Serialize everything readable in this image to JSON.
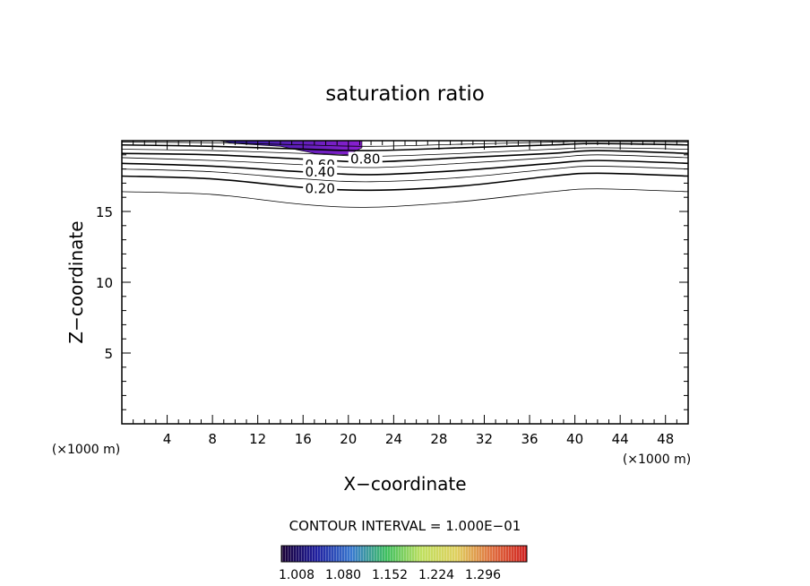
{
  "chart_data": {
    "type": "contour",
    "title": "saturation ratio",
    "xlabel": "X−coordinate",
    "ylabel": "Z−coordinate",
    "x_unit": "(×1000 m)",
    "y_unit": "(×1000 m)",
    "xlim": [
      0,
      50
    ],
    "ylim": [
      0,
      20
    ],
    "x_ticks": [
      4,
      8,
      12,
      16,
      20,
      24,
      28,
      32,
      36,
      40,
      44,
      48
    ],
    "y_ticks": [
      5,
      10,
      15
    ],
    "contour_interval_text": "CONTOUR INTERVAL = 1.000E−01",
    "contour_labels": [
      {
        "text": "0.80",
        "x": 21.5,
        "z": 18.7
      },
      {
        "text": "0.60",
        "x": 17.5,
        "z": 18.3
      },
      {
        "text": "0.40",
        "x": 17.5,
        "z": 17.8
      },
      {
        "text": "0.20",
        "x": 17.5,
        "z": 16.6
      }
    ],
    "contour_lines": [
      {
        "level": 0.1,
        "points": [
          [
            0,
            16.4
          ],
          [
            8,
            16.2
          ],
          [
            16,
            15.5
          ],
          [
            22,
            15.3
          ],
          [
            30,
            15.7
          ],
          [
            38,
            16.4
          ],
          [
            42,
            16.6
          ],
          [
            50,
            16.4
          ]
        ]
      },
      {
        "level": 0.2,
        "points": [
          [
            0,
            17.5
          ],
          [
            8,
            17.3
          ],
          [
            16,
            16.7
          ],
          [
            22,
            16.5
          ],
          [
            30,
            16.8
          ],
          [
            38,
            17.5
          ],
          [
            42,
            17.7
          ],
          [
            50,
            17.5
          ]
        ]
      },
      {
        "level": 0.3,
        "points": [
          [
            0,
            18.0
          ],
          [
            8,
            17.8
          ],
          [
            16,
            17.3
          ],
          [
            22,
            17.1
          ],
          [
            30,
            17.4
          ],
          [
            38,
            18.0
          ],
          [
            42,
            18.2
          ],
          [
            50,
            18.0
          ]
        ]
      },
      {
        "level": 0.4,
        "points": [
          [
            0,
            18.4
          ],
          [
            8,
            18.2
          ],
          [
            16,
            17.8
          ],
          [
            22,
            17.6
          ],
          [
            30,
            17.9
          ],
          [
            38,
            18.4
          ],
          [
            42,
            18.6
          ],
          [
            50,
            18.4
          ]
        ]
      },
      {
        "level": 0.5,
        "points": [
          [
            0,
            18.8
          ],
          [
            8,
            18.6
          ],
          [
            16,
            18.3
          ],
          [
            22,
            18.1
          ],
          [
            30,
            18.4
          ],
          [
            38,
            18.8
          ],
          [
            42,
            19.0
          ],
          [
            50,
            18.8
          ]
        ]
      },
      {
        "level": 0.6,
        "points": [
          [
            0,
            19.1
          ],
          [
            8,
            19.0
          ],
          [
            16,
            18.7
          ],
          [
            22,
            18.5
          ],
          [
            30,
            18.8
          ],
          [
            38,
            19.1
          ],
          [
            42,
            19.3
          ],
          [
            50,
            19.1
          ]
        ]
      },
      {
        "level": 0.7,
        "points": [
          [
            0,
            19.4
          ],
          [
            8,
            19.3
          ],
          [
            16,
            19.1
          ],
          [
            22,
            18.9
          ],
          [
            30,
            19.1
          ],
          [
            38,
            19.4
          ],
          [
            42,
            19.5
          ],
          [
            50,
            19.4
          ]
        ]
      },
      {
        "level": 0.8,
        "points": [
          [
            0,
            19.7
          ],
          [
            8,
            19.6
          ],
          [
            16,
            19.4
          ],
          [
            22,
            19.3
          ],
          [
            30,
            19.5
          ],
          [
            38,
            19.7
          ],
          [
            42,
            19.8
          ],
          [
            50,
            19.7
          ]
        ]
      },
      {
        "level": 0.9,
        "points": [
          [
            0,
            19.9
          ],
          [
            8,
            19.85
          ],
          [
            16,
            19.7
          ],
          [
            22,
            19.6
          ],
          [
            30,
            19.75
          ],
          [
            38,
            19.9
          ],
          [
            42,
            19.95
          ],
          [
            50,
            19.9
          ]
        ]
      }
    ],
    "shaded_region": {
      "x_range": [
        8.5,
        21.2
      ],
      "z_bottom": [
        [
          8.5,
          20
        ],
        [
          10,
          19.8
        ],
        [
          14,
          19.6
        ],
        [
          17,
          19.1
        ],
        [
          20,
          19.0
        ],
        [
          21.2,
          19.5
        ],
        [
          21.2,
          20
        ]
      ],
      "color_start": "#2a1f9c",
      "color_end": "#8a1fd0"
    },
    "colorbar": {
      "labels": [
        "1.008",
        "1.080",
        "1.152",
        "1.224",
        "1.296"
      ],
      "stops": [
        "#1a0033",
        "#2020a0",
        "#3a7ad0",
        "#40c060",
        "#c0e060",
        "#e0d060",
        "#e07040",
        "#d02020"
      ]
    }
  }
}
